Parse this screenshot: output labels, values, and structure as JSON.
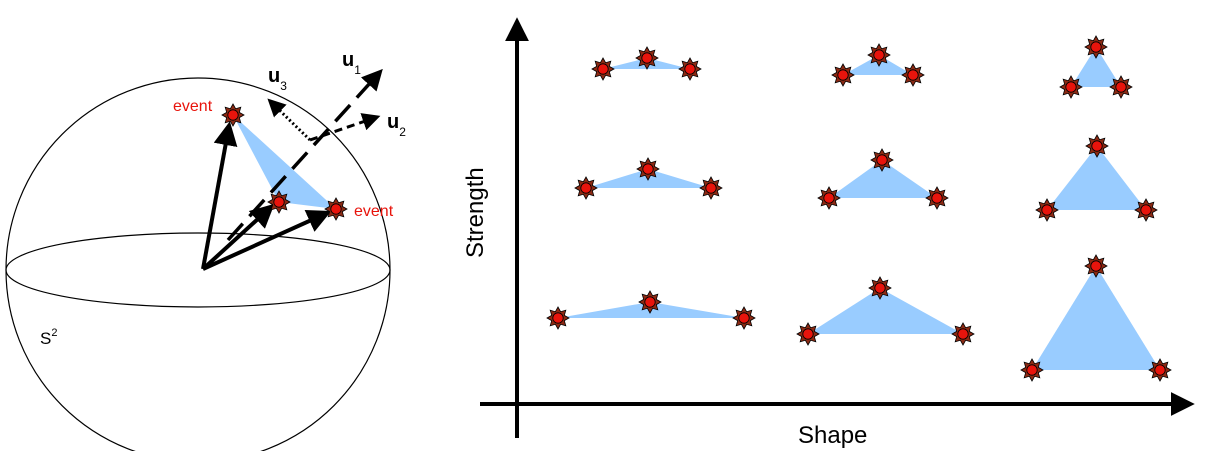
{
  "colors": {
    "event": "#e8140c",
    "event_star_fill": "#8c2a14",
    "event_core": "#e8140c",
    "triangle_fill": "#99ccff",
    "line": "#000000",
    "event_label": "#e8140c"
  },
  "sphere": {
    "label_base": "S",
    "label_sup": "2",
    "events": [
      {
        "label": "event"
      },
      {
        "label": "event"
      }
    ],
    "vectors": [
      {
        "name": "u",
        "sub": "1",
        "style": "dash-dot-arrow"
      },
      {
        "name": "u",
        "sub": "2",
        "style": "dashed-arrow"
      },
      {
        "name": "u",
        "sub": "3",
        "style": "dotted-arrow"
      }
    ]
  },
  "grid_plot": {
    "x_axis_label": "Shape",
    "y_axis_label": "Strength",
    "rows": 3,
    "cols": 3,
    "marker_icon": "star-burst-icon"
  }
}
